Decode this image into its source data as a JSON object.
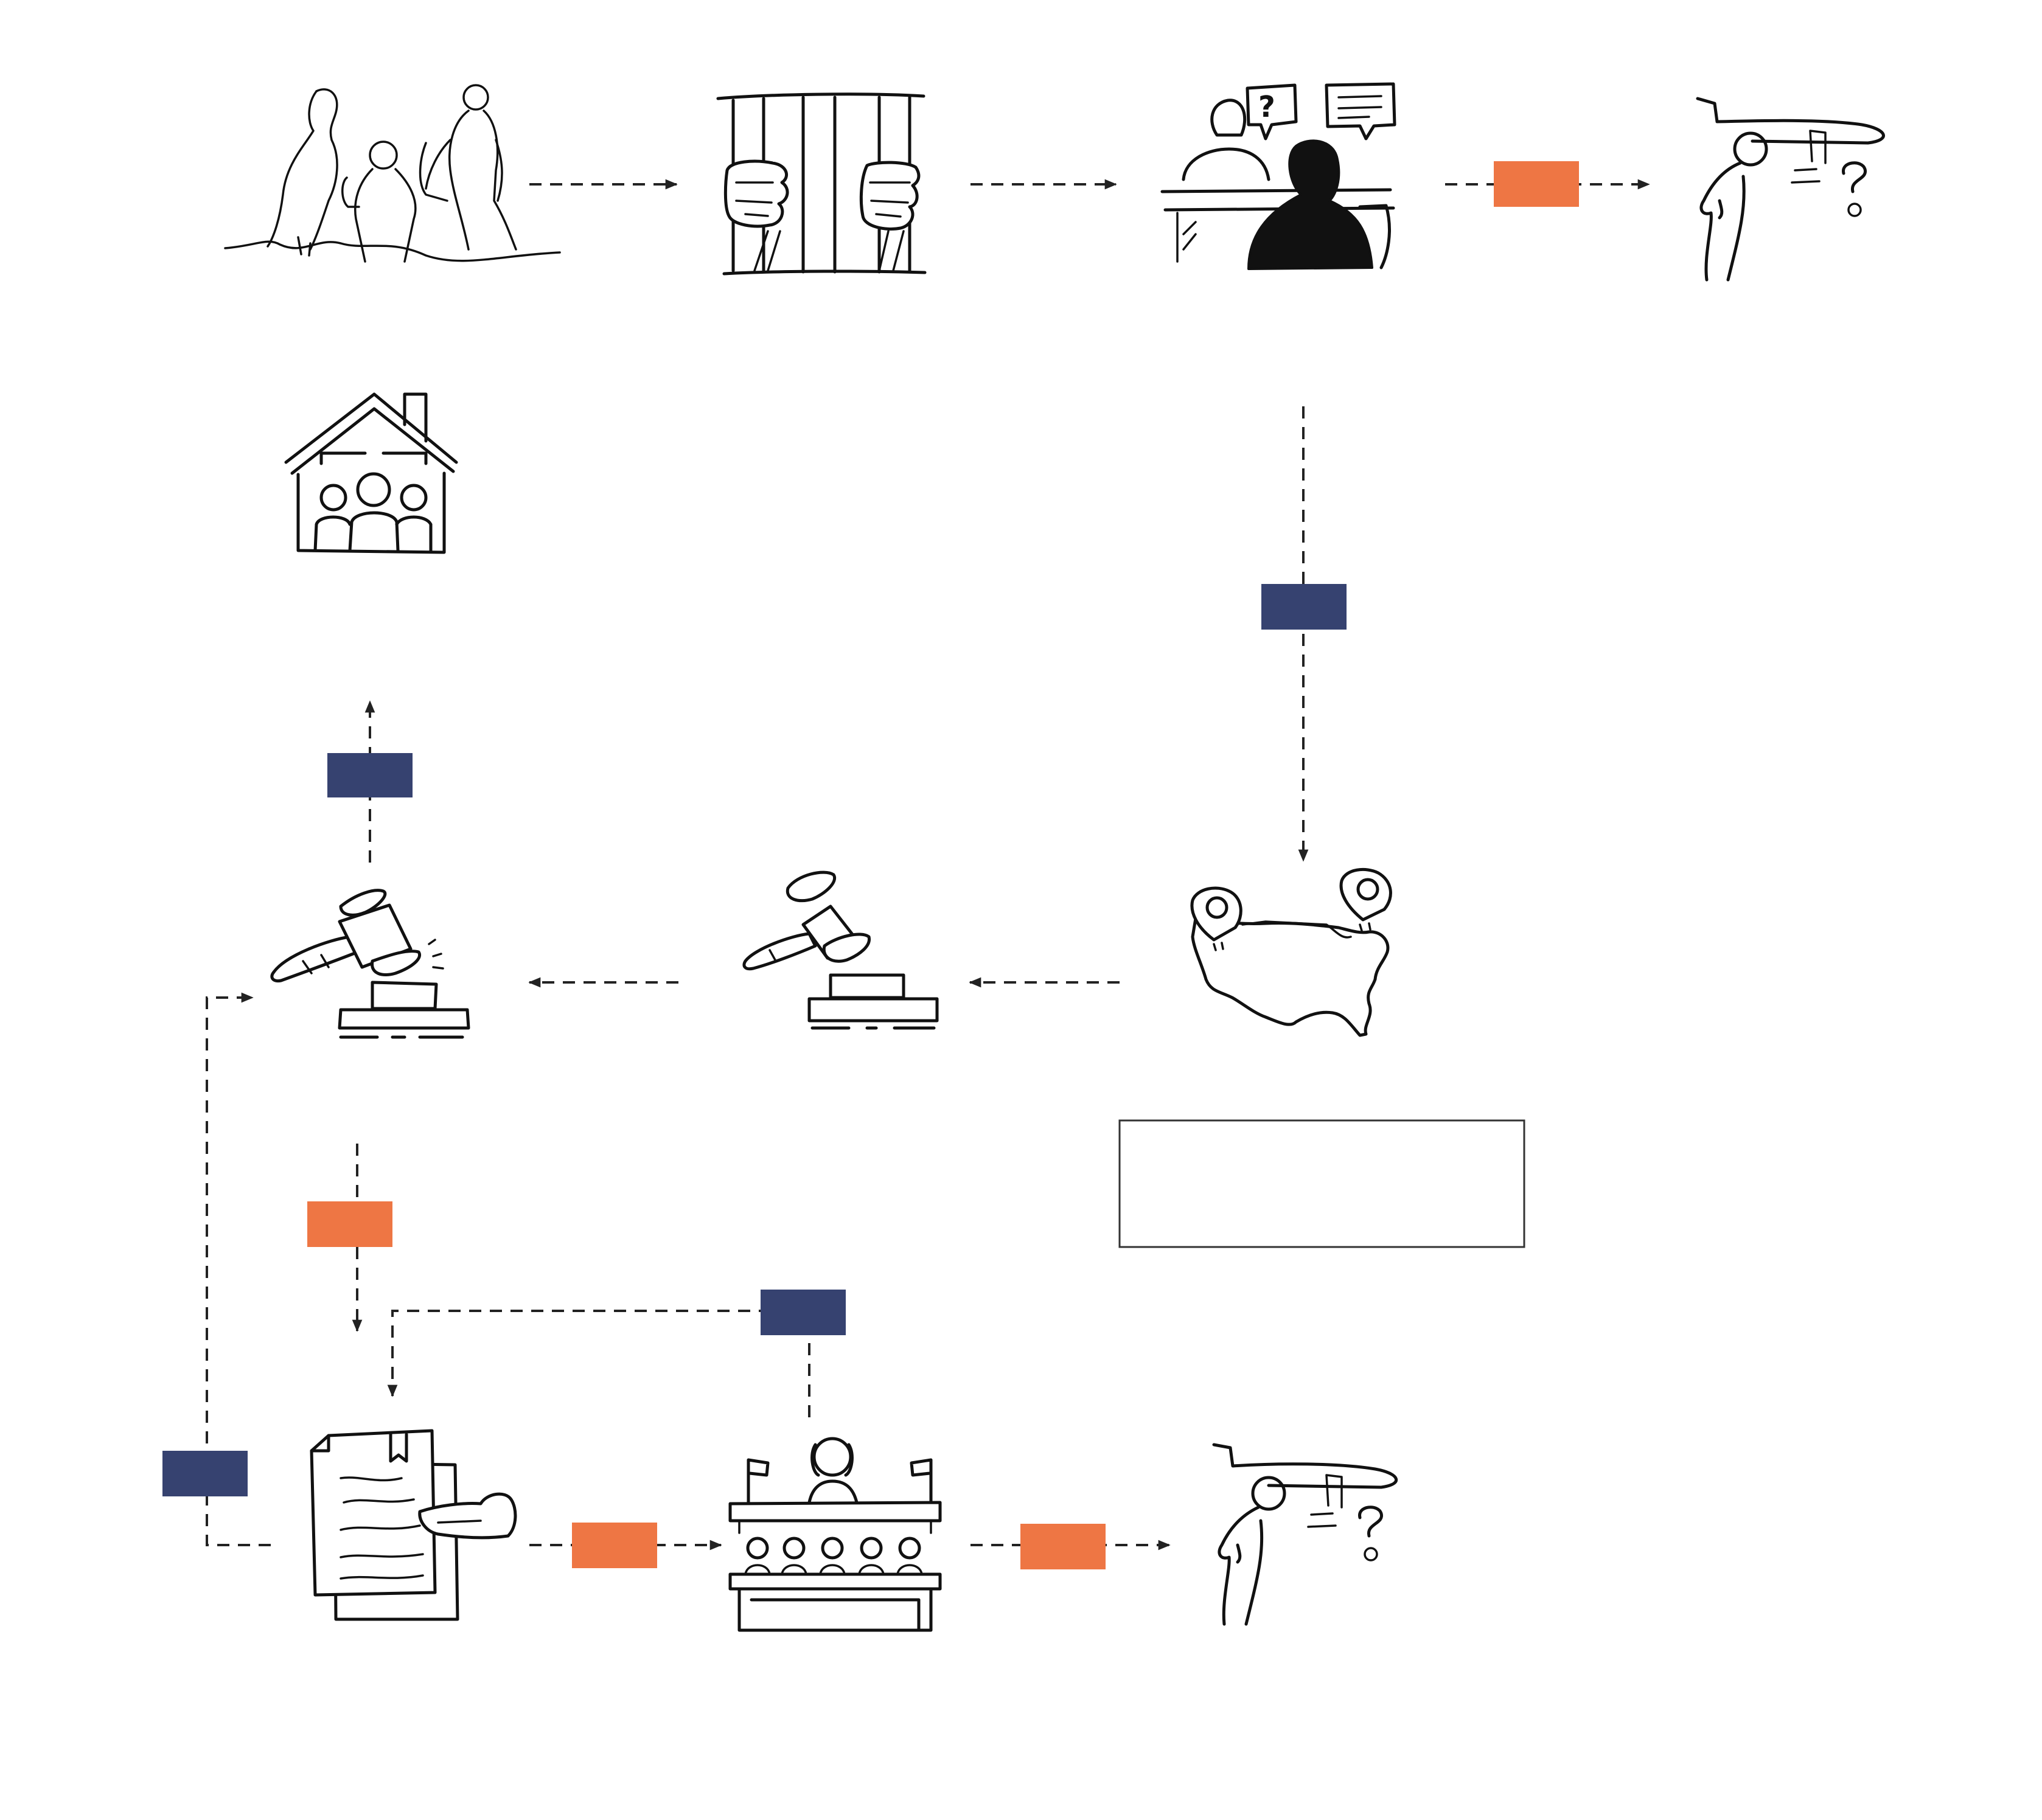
{
  "colors": {
    "orange": "#EE7644",
    "navy": "#364270",
    "ink": "#111111",
    "background": "#ffffff"
  },
  "icons": [
    "people-walking-icon",
    "jail-bars-icon",
    "interview-icon",
    "deported-person-icon",
    "family-home-icon",
    "gavel-raised-icon",
    "gavel-icon",
    "us-map-pins-icon",
    "document-hand-icon",
    "courtroom-judge-icon",
    "deported-person-icon"
  ],
  "edge_labels": {
    "interview_to_deport": {
      "color": "orange",
      "text": ""
    },
    "interview_to_map": {
      "color": "navy",
      "text": ""
    },
    "gavel_to_home": {
      "color": "navy",
      "text": ""
    },
    "gavel_to_document": {
      "color": "orange",
      "text": ""
    },
    "court_to_document": {
      "color": "navy",
      "text": ""
    },
    "document_loop_back": {
      "color": "navy",
      "text": ""
    },
    "document_to_court": {
      "color": "orange",
      "text": ""
    },
    "court_to_deport": {
      "color": "orange",
      "text": ""
    }
  },
  "note_box": {
    "text": ""
  }
}
